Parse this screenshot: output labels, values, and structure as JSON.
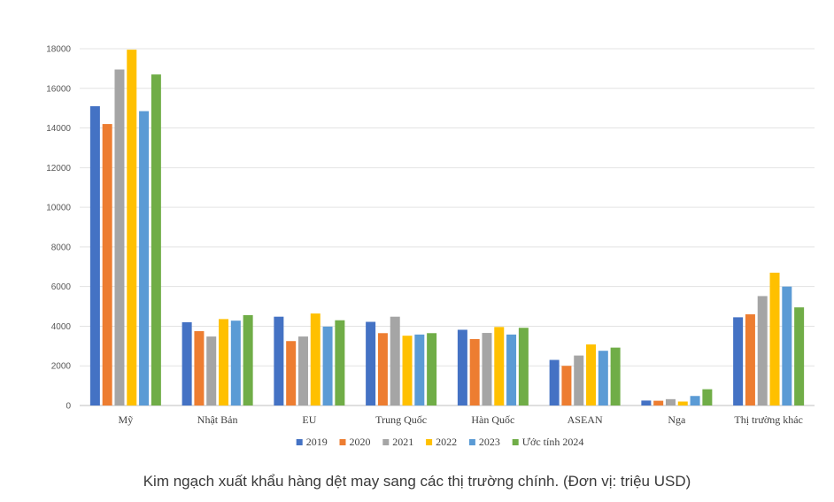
{
  "caption": "Kim ngạch xuất khẩu hàng dệt may sang các thị trường chính. (Đơn vị: triệu USD)",
  "chart_data": {
    "type": "bar",
    "title": "",
    "xlabel": "",
    "ylabel": "",
    "ylim": [
      0,
      18000
    ],
    "yticks": [
      0,
      2000,
      4000,
      6000,
      8000,
      10000,
      12000,
      14000,
      16000,
      18000
    ],
    "grid": true,
    "legend_position": "bottom",
    "categories": [
      "Mỹ",
      "Nhật Bản",
      "EU",
      "Trung Quốc",
      "Hàn Quốc",
      "ASEAN",
      "Nga",
      "Thị trường khác"
    ],
    "series": [
      {
        "name": "2019",
        "color": "#4472c4",
        "values": [
          15100,
          4200,
          4480,
          4220,
          3820,
          2300,
          250,
          4450
        ]
      },
      {
        "name": "2020",
        "color": "#ed7d31",
        "values": [
          14200,
          3750,
          3250,
          3650,
          3350,
          2000,
          240,
          4600
        ]
      },
      {
        "name": "2021",
        "color": "#a5a5a5",
        "values": [
          16950,
          3480,
          3480,
          4480,
          3660,
          2520,
          320,
          5520
        ]
      },
      {
        "name": "2022",
        "color": "#ffc000",
        "values": [
          17950,
          4360,
          4640,
          3520,
          3960,
          3080,
          200,
          6700
        ]
      },
      {
        "name": "2023",
        "color": "#5b9bd5",
        "values": [
          14850,
          4280,
          3980,
          3580,
          3580,
          2760,
          480,
          6000
        ]
      },
      {
        "name": "Ước tính 2024",
        "color": "#70ad47",
        "values": [
          16700,
          4560,
          4300,
          3650,
          3920,
          2920,
          820,
          4950
        ]
      }
    ]
  }
}
